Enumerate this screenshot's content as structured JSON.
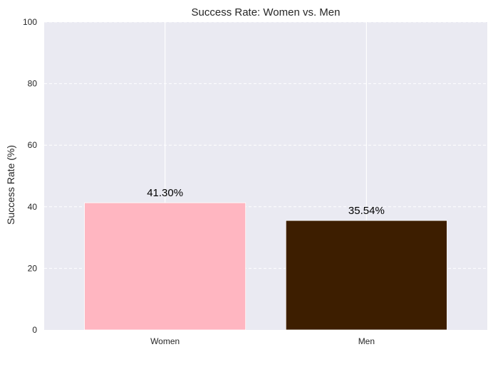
{
  "chart_data": {
    "type": "bar",
    "title": "Success Rate: Women vs. Men",
    "xlabel": "",
    "ylabel": "Success Rate (%)",
    "categories": [
      "Women",
      "Men"
    ],
    "values": [
      41.3,
      35.54
    ],
    "data_labels": [
      "41.30%",
      "35.54%"
    ],
    "colors": [
      "#ffb6c1",
      "#3d1e00"
    ],
    "ylim": [
      0,
      100
    ],
    "yticks": [
      0,
      20,
      40,
      60,
      80,
      100
    ],
    "ytick_labels": [
      "0",
      "20",
      "40",
      "60",
      "80",
      "100"
    ],
    "grid": true,
    "background": "#eaeaf2"
  }
}
